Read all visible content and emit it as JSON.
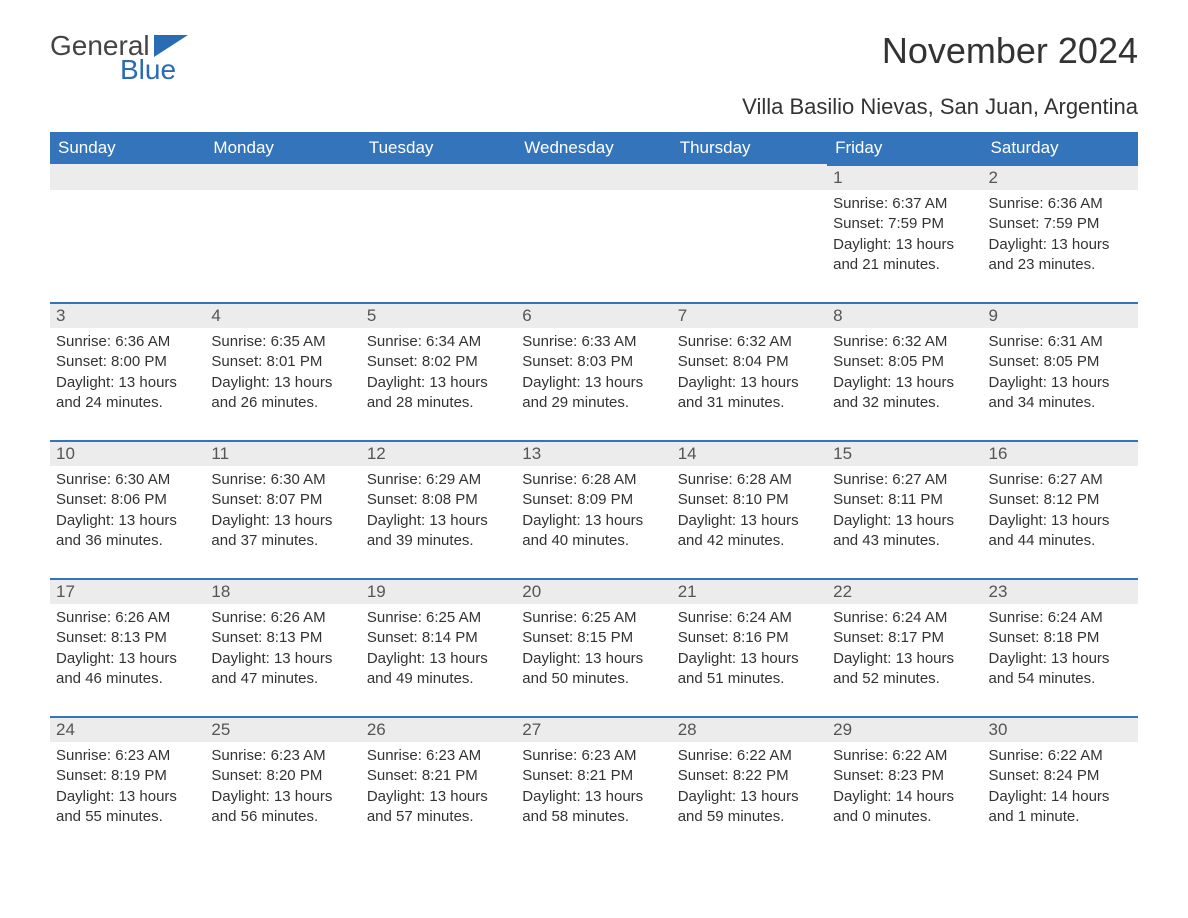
{
  "logo": {
    "part1": "General",
    "part2": "Blue",
    "flag_color": "#2a6cb3"
  },
  "title": "November 2024",
  "location": "Villa Basilio Nievas, San Juan, Argentina",
  "colors": {
    "header_bg": "#3474ba",
    "header_text": "#ffffff",
    "day_head_bg": "#ececec",
    "day_head_border": "#3474ba",
    "text": "#333333",
    "logo_gray": "#444444",
    "logo_blue": "#2a6cb3",
    "page_bg": "#ffffff"
  },
  "typography": {
    "title_fontsize": 36,
    "location_fontsize": 22,
    "header_fontsize": 17,
    "daynum_fontsize": 17,
    "body_fontsize": 15
  },
  "day_headers": [
    "Sunday",
    "Monday",
    "Tuesday",
    "Wednesday",
    "Thursday",
    "Friday",
    "Saturday"
  ],
  "weeks": [
    [
      null,
      null,
      null,
      null,
      null,
      {
        "n": "1",
        "sunrise": "Sunrise: 6:37 AM",
        "sunset": "Sunset: 7:59 PM",
        "daylight": "Daylight: 13 hours and 21 minutes."
      },
      {
        "n": "2",
        "sunrise": "Sunrise: 6:36 AM",
        "sunset": "Sunset: 7:59 PM",
        "daylight": "Daylight: 13 hours and 23 minutes."
      }
    ],
    [
      {
        "n": "3",
        "sunrise": "Sunrise: 6:36 AM",
        "sunset": "Sunset: 8:00 PM",
        "daylight": "Daylight: 13 hours and 24 minutes."
      },
      {
        "n": "4",
        "sunrise": "Sunrise: 6:35 AM",
        "sunset": "Sunset: 8:01 PM",
        "daylight": "Daylight: 13 hours and 26 minutes."
      },
      {
        "n": "5",
        "sunrise": "Sunrise: 6:34 AM",
        "sunset": "Sunset: 8:02 PM",
        "daylight": "Daylight: 13 hours and 28 minutes."
      },
      {
        "n": "6",
        "sunrise": "Sunrise: 6:33 AM",
        "sunset": "Sunset: 8:03 PM",
        "daylight": "Daylight: 13 hours and 29 minutes."
      },
      {
        "n": "7",
        "sunrise": "Sunrise: 6:32 AM",
        "sunset": "Sunset: 8:04 PM",
        "daylight": "Daylight: 13 hours and 31 minutes."
      },
      {
        "n": "8",
        "sunrise": "Sunrise: 6:32 AM",
        "sunset": "Sunset: 8:05 PM",
        "daylight": "Daylight: 13 hours and 32 minutes."
      },
      {
        "n": "9",
        "sunrise": "Sunrise: 6:31 AM",
        "sunset": "Sunset: 8:05 PM",
        "daylight": "Daylight: 13 hours and 34 minutes."
      }
    ],
    [
      {
        "n": "10",
        "sunrise": "Sunrise: 6:30 AM",
        "sunset": "Sunset: 8:06 PM",
        "daylight": "Daylight: 13 hours and 36 minutes."
      },
      {
        "n": "11",
        "sunrise": "Sunrise: 6:30 AM",
        "sunset": "Sunset: 8:07 PM",
        "daylight": "Daylight: 13 hours and 37 minutes."
      },
      {
        "n": "12",
        "sunrise": "Sunrise: 6:29 AM",
        "sunset": "Sunset: 8:08 PM",
        "daylight": "Daylight: 13 hours and 39 minutes."
      },
      {
        "n": "13",
        "sunrise": "Sunrise: 6:28 AM",
        "sunset": "Sunset: 8:09 PM",
        "daylight": "Daylight: 13 hours and 40 minutes."
      },
      {
        "n": "14",
        "sunrise": "Sunrise: 6:28 AM",
        "sunset": "Sunset: 8:10 PM",
        "daylight": "Daylight: 13 hours and 42 minutes."
      },
      {
        "n": "15",
        "sunrise": "Sunrise: 6:27 AM",
        "sunset": "Sunset: 8:11 PM",
        "daylight": "Daylight: 13 hours and 43 minutes."
      },
      {
        "n": "16",
        "sunrise": "Sunrise: 6:27 AM",
        "sunset": "Sunset: 8:12 PM",
        "daylight": "Daylight: 13 hours and 44 minutes."
      }
    ],
    [
      {
        "n": "17",
        "sunrise": "Sunrise: 6:26 AM",
        "sunset": "Sunset: 8:13 PM",
        "daylight": "Daylight: 13 hours and 46 minutes."
      },
      {
        "n": "18",
        "sunrise": "Sunrise: 6:26 AM",
        "sunset": "Sunset: 8:13 PM",
        "daylight": "Daylight: 13 hours and 47 minutes."
      },
      {
        "n": "19",
        "sunrise": "Sunrise: 6:25 AM",
        "sunset": "Sunset: 8:14 PM",
        "daylight": "Daylight: 13 hours and 49 minutes."
      },
      {
        "n": "20",
        "sunrise": "Sunrise: 6:25 AM",
        "sunset": "Sunset: 8:15 PM",
        "daylight": "Daylight: 13 hours and 50 minutes."
      },
      {
        "n": "21",
        "sunrise": "Sunrise: 6:24 AM",
        "sunset": "Sunset: 8:16 PM",
        "daylight": "Daylight: 13 hours and 51 minutes."
      },
      {
        "n": "22",
        "sunrise": "Sunrise: 6:24 AM",
        "sunset": "Sunset: 8:17 PM",
        "daylight": "Daylight: 13 hours and 52 minutes."
      },
      {
        "n": "23",
        "sunrise": "Sunrise: 6:24 AM",
        "sunset": "Sunset: 8:18 PM",
        "daylight": "Daylight: 13 hours and 54 minutes."
      }
    ],
    [
      {
        "n": "24",
        "sunrise": "Sunrise: 6:23 AM",
        "sunset": "Sunset: 8:19 PM",
        "daylight": "Daylight: 13 hours and 55 minutes."
      },
      {
        "n": "25",
        "sunrise": "Sunrise: 6:23 AM",
        "sunset": "Sunset: 8:20 PM",
        "daylight": "Daylight: 13 hours and 56 minutes."
      },
      {
        "n": "26",
        "sunrise": "Sunrise: 6:23 AM",
        "sunset": "Sunset: 8:21 PM",
        "daylight": "Daylight: 13 hours and 57 minutes."
      },
      {
        "n": "27",
        "sunrise": "Sunrise: 6:23 AM",
        "sunset": "Sunset: 8:21 PM",
        "daylight": "Daylight: 13 hours and 58 minutes."
      },
      {
        "n": "28",
        "sunrise": "Sunrise: 6:22 AM",
        "sunset": "Sunset: 8:22 PM",
        "daylight": "Daylight: 13 hours and 59 minutes."
      },
      {
        "n": "29",
        "sunrise": "Sunrise: 6:22 AM",
        "sunset": "Sunset: 8:23 PM",
        "daylight": "Daylight: 14 hours and 0 minutes."
      },
      {
        "n": "30",
        "sunrise": "Sunrise: 6:22 AM",
        "sunset": "Sunset: 8:24 PM",
        "daylight": "Daylight: 14 hours and 1 minute."
      }
    ]
  ]
}
